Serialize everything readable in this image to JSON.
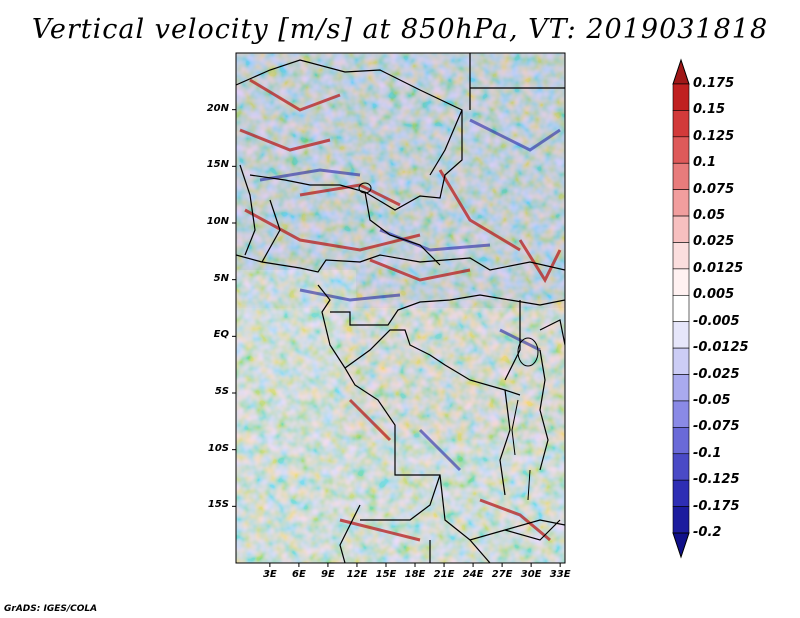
{
  "title": "Vertical velocity [m/s] at 850hPa, VT: 2019031818",
  "credit": "GrADS: IGES/COLA",
  "map": {
    "lat_range": [
      -20,
      25
    ],
    "lon_range": [
      -0.5,
      33.5
    ],
    "lat_labels": [
      "20N",
      "15N",
      "10N",
      "5N",
      "EQ",
      "5S",
      "10S",
      "15S"
    ],
    "lat_values": [
      20,
      15,
      10,
      5,
      0,
      -5,
      -10,
      -15
    ],
    "lon_labels": [
      "3E",
      "6E",
      "9E",
      "12E",
      "15E",
      "18E",
      "21E",
      "24E",
      "27E",
      "30E",
      "33E"
    ],
    "lon_values": [
      3,
      6,
      9,
      12,
      15,
      18,
      21,
      24,
      27,
      30,
      33
    ]
  },
  "colorbar": {
    "labels": [
      "0.175",
      "0.15",
      "0.125",
      "0.1",
      "0.075",
      "0.05",
      "0.025",
      "0.0125",
      "0.005",
      "-0.005",
      "-0.0125",
      "-0.025",
      "-0.05",
      "-0.075",
      "-0.1",
      "-0.125",
      "-0.175",
      "-0.2"
    ],
    "colors": [
      "#a01818",
      "#c02020",
      "#d23a3a",
      "#de5a5a",
      "#e87c7c",
      "#f19e9e",
      "#f7c0c0",
      "#fbdede",
      "#fff1f1",
      "#ffffff",
      "#e6e6fa",
      "#cccdf5",
      "#a9aaee",
      "#8a8ae6",
      "#6a6ad8",
      "#4a4ac6",
      "#2e2eb4",
      "#1c1c9e",
      "#10108a"
    ]
  }
}
